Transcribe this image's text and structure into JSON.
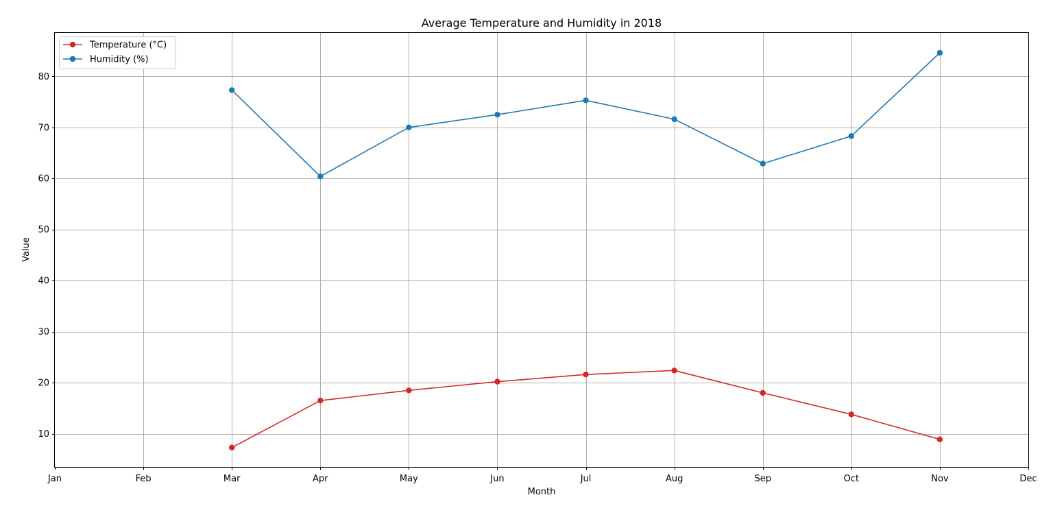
{
  "chart_data": {
    "type": "line",
    "title": "Average Temperature and Humidity in 2018",
    "xlabel": "Month",
    "ylabel": "Value",
    "categories": [
      "Jan",
      "Feb",
      "Mar",
      "Apr",
      "May",
      "Jun",
      "Jul",
      "Aug",
      "Sep",
      "Oct",
      "Nov",
      "Dec"
    ],
    "ylim": [
      3.5,
      88.5
    ],
    "yticks": [
      10,
      20,
      30,
      40,
      50,
      60,
      70,
      80
    ],
    "grid": true,
    "legend_position": "top-left",
    "series": [
      {
        "name": "Temperature (°C)",
        "color": "#d62728",
        "marker": "circle",
        "x": [
          "Mar",
          "Apr",
          "May",
          "Jun",
          "Jul",
          "Aug",
          "Sep",
          "Oct",
          "Nov"
        ],
        "values": [
          7.3,
          16.5,
          18.5,
          20.2,
          21.6,
          22.4,
          18.0,
          13.8,
          8.9
        ]
      },
      {
        "name": "Humidity (%)",
        "color": "#1f77b4",
        "marker": "circle",
        "x": [
          "Mar",
          "Apr",
          "May",
          "Jun",
          "Jul",
          "Aug",
          "Sep",
          "Oct",
          "Nov"
        ],
        "values": [
          77.3,
          60.4,
          70.0,
          72.5,
          75.3,
          71.6,
          62.9,
          68.3,
          84.6
        ]
      }
    ]
  }
}
